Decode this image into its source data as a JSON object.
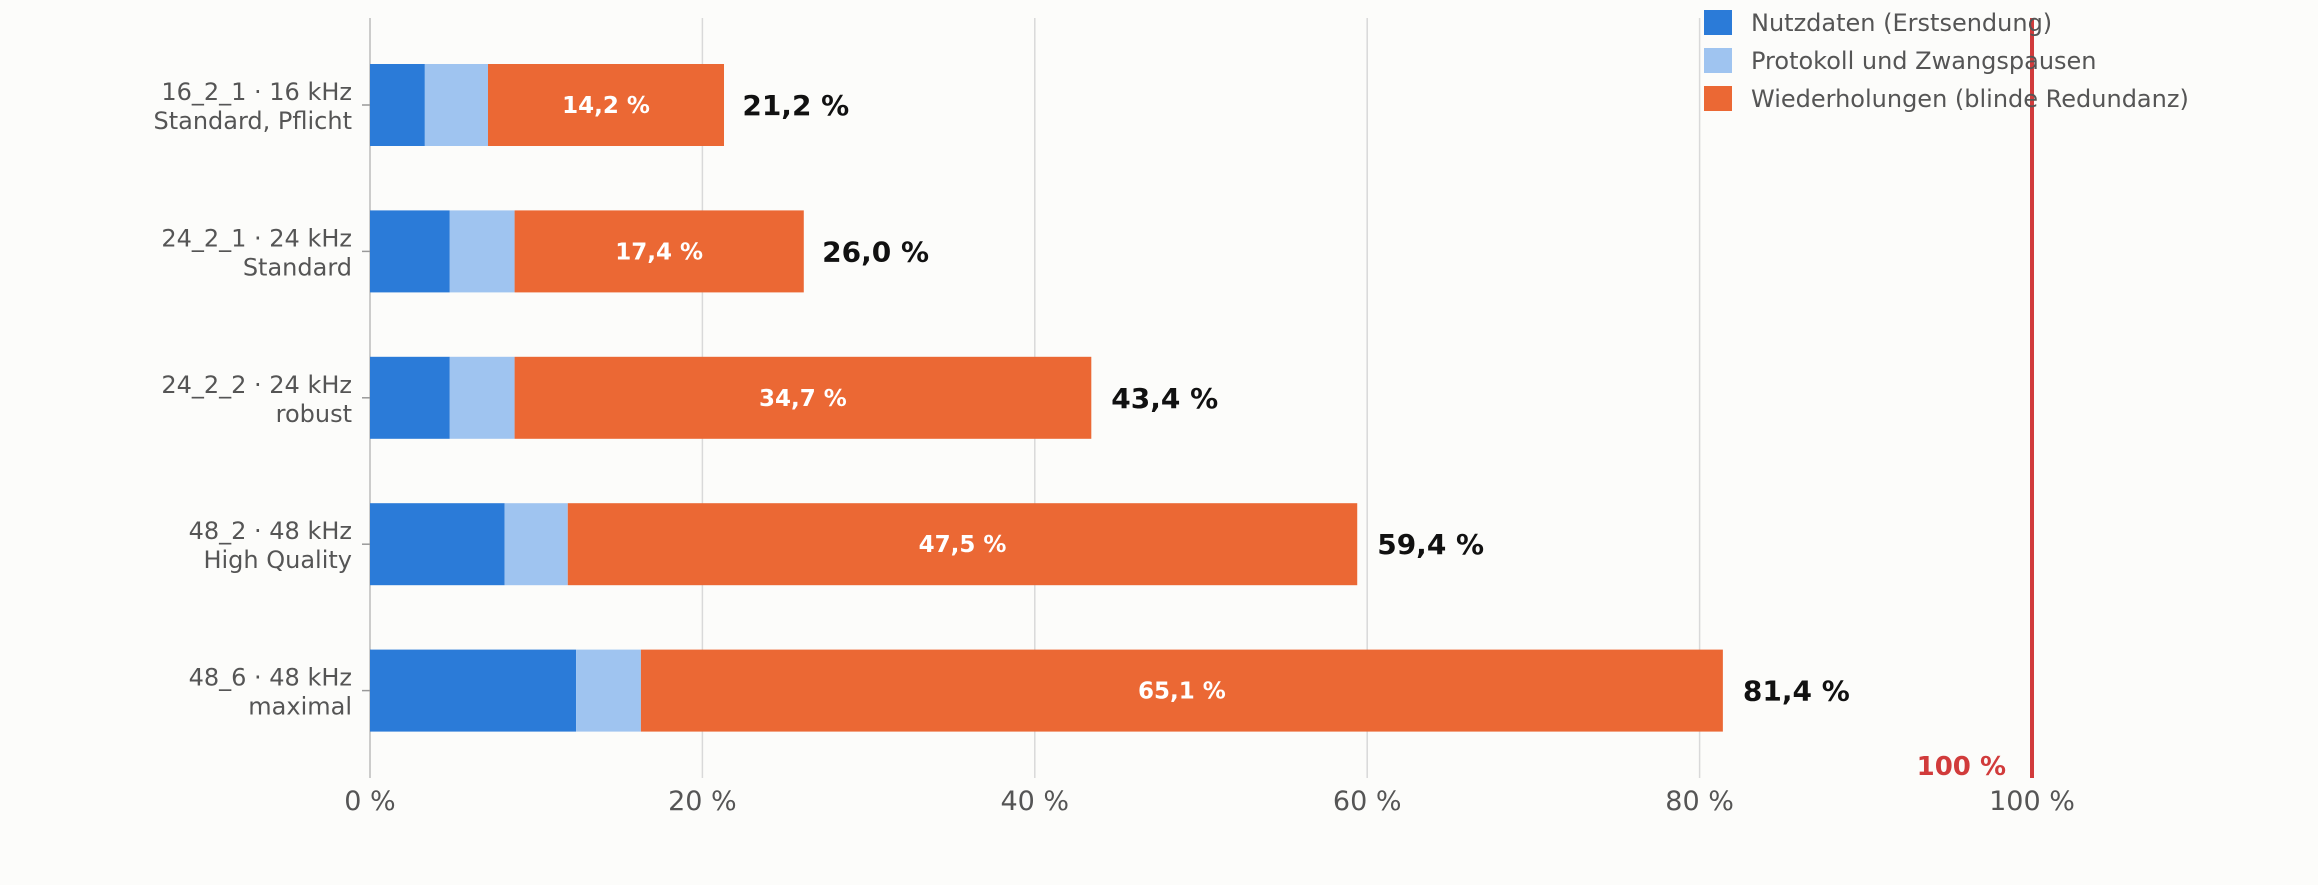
{
  "chart_data": {
    "type": "bar",
    "orientation": "horizontal",
    "stacked": true,
    "categories": [
      [
        "16_2_1 · 16 kHz",
        "Standard, Pflicht"
      ],
      [
        "24_2_1 · 24 kHz",
        "Standard"
      ],
      [
        "24_2_2 · 24 kHz",
        "robust"
      ],
      [
        "48_2 · 48 kHz",
        "High Quality"
      ],
      [
        "48_6 · 48 kHz",
        "maximal"
      ]
    ],
    "series": [
      {
        "name": "Nutzdaten (Erstsendung)",
        "color": "#2b7bd8",
        "values": [
          3.3,
          4.8,
          4.8,
          8.1,
          12.4
        ]
      },
      {
        "name": "Protokoll und Zwangspausen",
        "color": "#9fc4f0",
        "values": [
          3.8,
          3.9,
          3.9,
          3.8,
          3.9
        ]
      },
      {
        "name": "Wiederholungen (blinde Redundanz)",
        "color": "#eb6834",
        "values": [
          14.2,
          17.4,
          34.7,
          47.5,
          65.1
        ]
      }
    ],
    "segment_labels": [
      "14,2 %",
      "17,4 %",
      "34,7 %",
      "47,5 %",
      "65,1 %"
    ],
    "totals": [
      21.2,
      26.0,
      43.4,
      59.4,
      81.4
    ],
    "total_labels": [
      "21,2 %",
      "26,0 %",
      "43,4 %",
      "59,4 %",
      "81,4 %"
    ],
    "xlim": [
      0,
      105
    ],
    "xticks": [
      0,
      20,
      40,
      60,
      80,
      100
    ],
    "xtick_labels": [
      "0 %",
      "20 %",
      "40 %",
      "60 %",
      "80 %",
      "100 %"
    ],
    "reference_line": {
      "value": 100,
      "label": "100 %",
      "color": "#d13b3b"
    },
    "grid": "vertical",
    "legend_position": "top-right",
    "title": "",
    "xlabel": "",
    "ylabel": ""
  }
}
